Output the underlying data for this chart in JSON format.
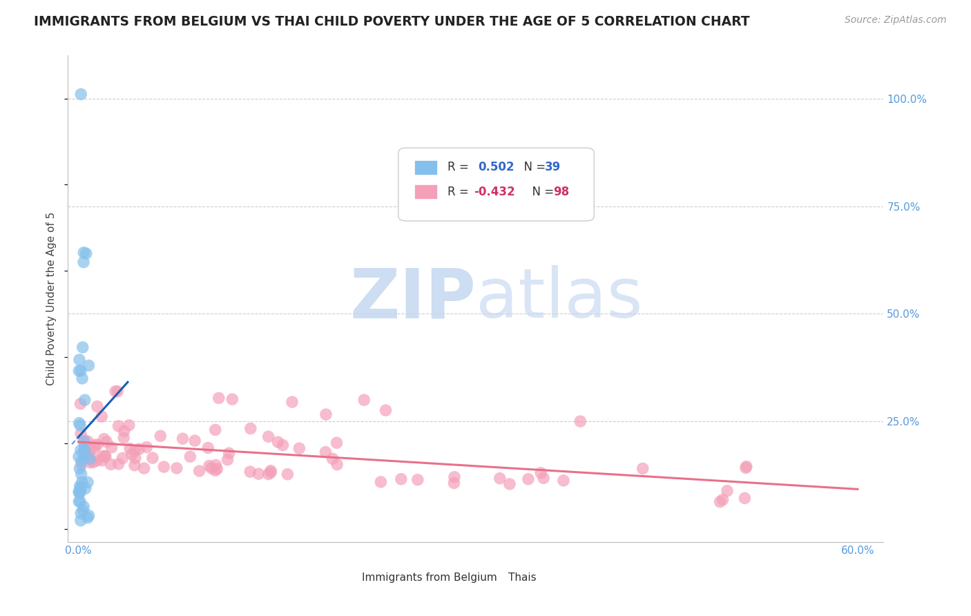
{
  "title": "IMMIGRANTS FROM BELGIUM VS THAI CHILD POVERTY UNDER THE AGE OF 5 CORRELATION CHART",
  "source": "Source: ZipAtlas.com",
  "ylabel": "Child Poverty Under the Age of 5",
  "blue_color": "#85BFEC",
  "pink_color": "#F4A0B8",
  "blue_line_color": "#1A5FB4",
  "pink_line_color": "#E8708A",
  "watermark_zip": "ZIP",
  "watermark_atlas": "atlas",
  "watermark_color": "#D8E8F8",
  "xlim_max": 0.6,
  "ylim_max": 1.05
}
